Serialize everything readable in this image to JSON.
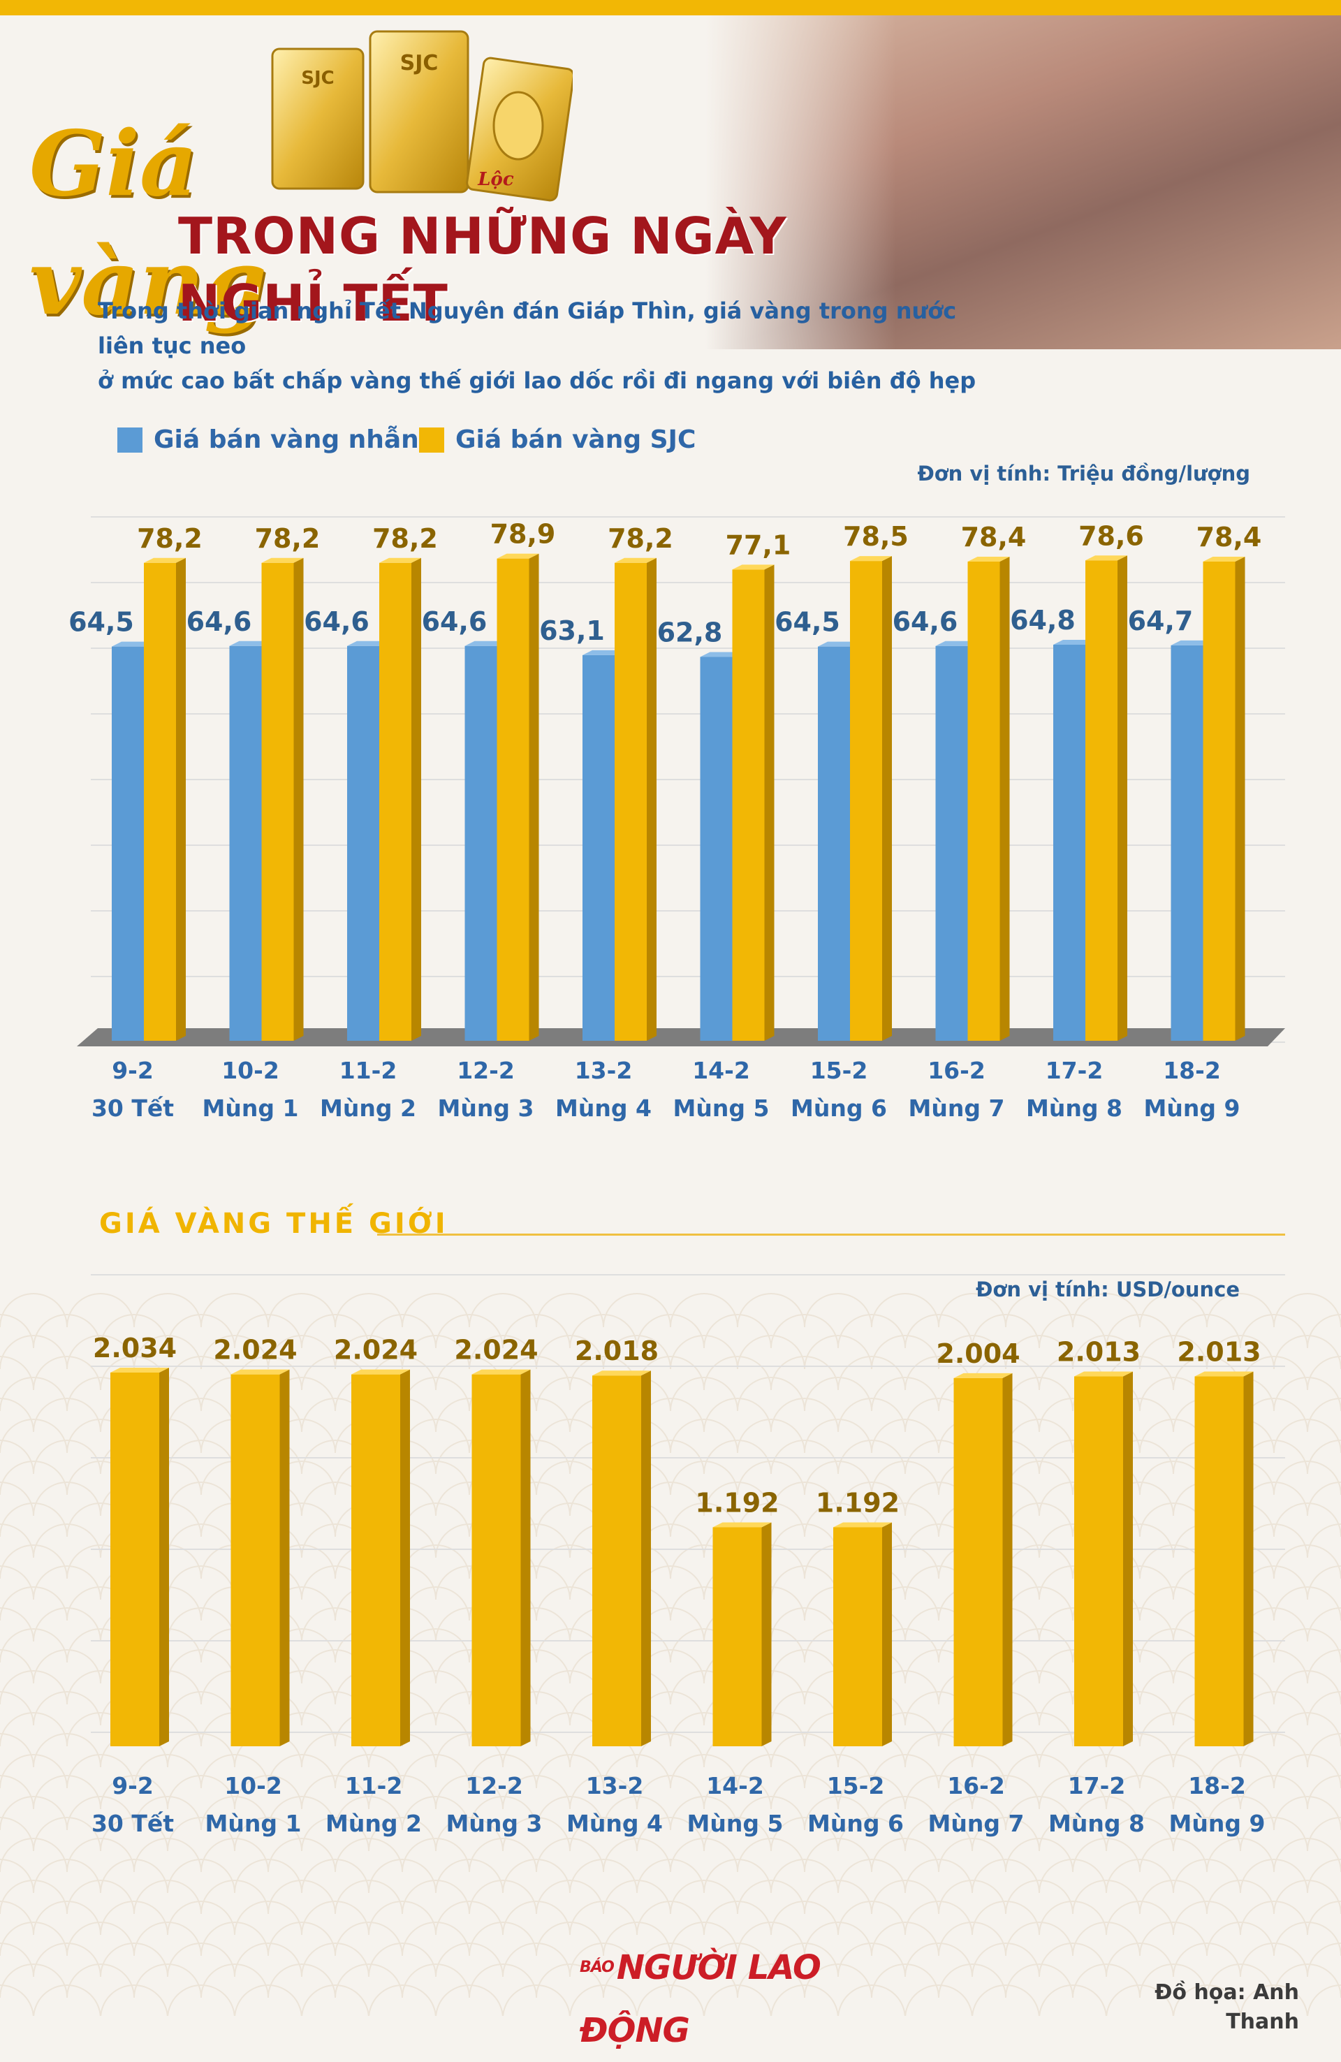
{
  "header": {
    "script_title": "Giá vàng",
    "main_title": "TRONG NHỮNG NGÀY NGHỈ TẾT",
    "subtitle_line1": "Trong thời gian nghỉ Tết Nguyên đán Giáp Thìn, giá vàng trong nước liên tục neo",
    "subtitle_line2": "ở mức cao bất chấp vàng thế giới lao dốc rồi đi ngang với biên độ hẹp",
    "gold_bar_text": "SJC",
    "gold_bar_small": "Lộc"
  },
  "colors": {
    "blue": "#5b9bd5",
    "gold": "#f2b705",
    "title_red": "#a3161c",
    "text_blue": "#2f67a8"
  },
  "chart_data": [
    {
      "type": "bar",
      "unit": "Đơn vị tính: Triệu đồng/lượng",
      "categories": [
        "9-2",
        "10-2",
        "11-2",
        "12-2",
        "13-2",
        "14-2",
        "15-2",
        "16-2",
        "17-2",
        "18-2"
      ],
      "sub_categories": [
        "30 Tết",
        "Mùng 1",
        "Mùng 2",
        "Mùng 3",
        "Mùng 4",
        "Mùng 5",
        "Mùng 6",
        "Mùng 7",
        "Mùng 8",
        "Mùng 9"
      ],
      "series": [
        {
          "name": "Giá bán vàng nhẫn",
          "values": [
            64.5,
            64.6,
            64.6,
            64.6,
            63.1,
            62.8,
            64.5,
            64.6,
            64.8,
            64.7
          ],
          "labels": [
            "64,5",
            "64,6",
            "64,6",
            "64,6",
            "63,1",
            "62,8",
            "64,5",
            "64,6",
            "64,8",
            "64,7"
          ]
        },
        {
          "name": "Giá bán vàng SJC",
          "values": [
            78.2,
            78.2,
            78.2,
            78.9,
            78.2,
            77.1,
            78.5,
            78.4,
            78.6,
            78.4
          ],
          "labels": [
            "78,2",
            "78,2",
            "78,2",
            "78,9",
            "78,2",
            "77,1",
            "78,5",
            "78,4",
            "78,6",
            "78,4"
          ]
        }
      ],
      "legend_position": "top-left",
      "grid": true
    },
    {
      "type": "bar",
      "title": "GIÁ VÀNG THẾ GIỚI",
      "unit": "Đơn vị tính: USD/ounce",
      "categories": [
        "9-2",
        "10-2",
        "11-2",
        "12-2",
        "13-2",
        "14-2",
        "15-2",
        "16-2",
        "17-2",
        "18-2"
      ],
      "sub_categories": [
        "30 Tết",
        "Mùng 1",
        "Mùng 2",
        "Mùng 3",
        "Mùng 4",
        "Mùng 5",
        "Mùng 6",
        "Mùng 7",
        "Mùng 8",
        "Mùng 9"
      ],
      "series": [
        {
          "values": [
            2034,
            2024,
            2024,
            2024,
            2018,
            1192,
            1192,
            2004,
            2013,
            2013
          ],
          "labels": [
            "2.034",
            "2.024",
            "2.024",
            "2.024",
            "2.018",
            "1.192",
            "1.192",
            "2.004",
            "2.013",
            "2.013"
          ]
        }
      ],
      "grid": true
    }
  ],
  "footer": {
    "logo": "NGƯỜI LAO ĐỘNG",
    "logo_small": "BÁO",
    "credit": "Đồ họa: Anh Thanh"
  }
}
